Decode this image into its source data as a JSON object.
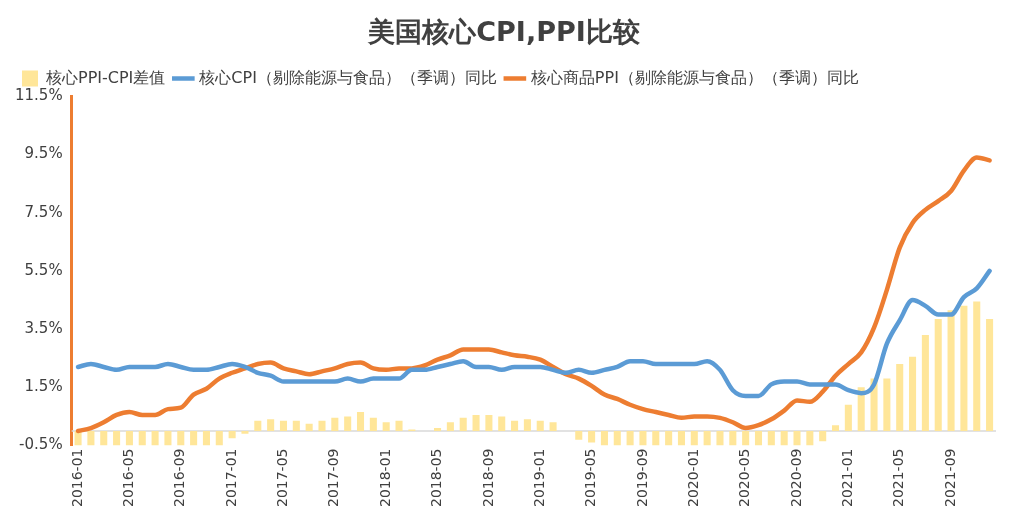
{
  "chart_data": {
    "type": "bar",
    "title": "美国核心CPI,PPI比较",
    "categories": [
      "2016-01",
      null,
      null,
      null,
      "2016-05",
      null,
      null,
      null,
      "2016-09",
      null,
      null,
      null,
      "2017-01",
      null,
      null,
      null,
      "2017-05",
      null,
      null,
      null,
      "2017-09",
      null,
      null,
      null,
      "2018-01",
      null,
      null,
      null,
      "2018-05",
      null,
      null,
      null,
      "2018-09",
      null,
      null,
      null,
      "2019-01",
      null,
      null,
      null,
      "2019-05",
      null,
      null,
      null,
      "2019-09",
      null,
      null,
      null,
      "2020-01",
      null,
      null,
      null,
      "2020-05",
      null,
      null,
      null,
      "2020-09",
      null,
      null,
      null,
      "2021-01",
      null,
      null,
      null,
      "2021-05",
      null,
      null,
      null,
      "2021-09",
      null,
      null,
      null
    ],
    "series": [
      {
        "name": "核心PPI-CPI差值",
        "color": "#ffe699",
        "values": [
          -0.5,
          -0.5,
          -0.5,
          -0.5,
          -0.5,
          -0.5,
          -0.5,
          -0.5,
          -0.5,
          -0.5,
          -0.5,
          -0.5,
          -0.25,
          -0.1,
          0.35,
          0.4,
          0.35,
          0.35,
          0.25,
          0.35,
          0.45,
          0.5,
          0.65,
          0.45,
          0.3,
          0.35,
          0.05,
          0,
          0.1,
          0.3,
          0.45,
          0.55,
          0.55,
          0.5,
          0.35,
          0.4,
          0.35,
          0.3,
          0,
          -0.3,
          -0.4,
          -0.5,
          -0.5,
          -0.5,
          -0.5,
          -0.5,
          -0.5,
          -0.5,
          -0.5,
          -0.5,
          -0.5,
          -0.5,
          -0.5,
          -0.5,
          -0.5,
          -0.5,
          -0.5,
          -0.5,
          -0.35,
          0.2,
          0.9,
          1.5,
          1.8,
          1.8,
          2.3,
          2.55,
          3.3,
          3.85,
          4.15,
          4.3,
          4.45,
          3.85
        ]
      },
      {
        "type": "line",
        "name": "核心CPI（剔除能源与食品）（季调）同比",
        "color": "#5b9bd5",
        "values": [
          2.2,
          2.3,
          2.2,
          2.1,
          2.2,
          2.2,
          2.2,
          2.3,
          2.2,
          2.1,
          2.1,
          2.2,
          2.3,
          2.2,
          2.0,
          1.9,
          1.7,
          1.7,
          1.7,
          1.7,
          1.7,
          1.8,
          1.7,
          1.8,
          1.8,
          1.8,
          2.1,
          2.1,
          2.2,
          2.3,
          2.4,
          2.2,
          2.2,
          2.1,
          2.2,
          2.2,
          2.2,
          2.1,
          2.0,
          2.1,
          2.0,
          2.1,
          2.2,
          2.4,
          2.4,
          2.3,
          2.3,
          2.3,
          2.3,
          2.4,
          2.1,
          1.4,
          1.2,
          1.2,
          1.6,
          1.7,
          1.7,
          1.6,
          1.6,
          1.6,
          1.4,
          1.3,
          1.6,
          3.0,
          3.8,
          4.5,
          4.3,
          4.0,
          4.0,
          4.6,
          4.9,
          5.5
        ]
      },
      {
        "type": "line",
        "name": "核心商品PPI（剔除能源与食品）（季调）同比",
        "color": "#ed7d31",
        "values": [
          0.0,
          0.1,
          0.3,
          0.55,
          0.65,
          0.55,
          0.55,
          0.75,
          0.8,
          1.25,
          1.45,
          1.8,
          2.0,
          2.15,
          2.3,
          2.35,
          2.15,
          2.05,
          1.95,
          2.05,
          2.15,
          2.3,
          2.35,
          2.15,
          2.1,
          2.15,
          2.15,
          2.25,
          2.45,
          2.6,
          2.8,
          2.8,
          2.8,
          2.7,
          2.6,
          2.55,
          2.45,
          2.2,
          1.95,
          1.8,
          1.55,
          1.25,
          1.1,
          0.9,
          0.75,
          0.65,
          0.55,
          0.45,
          0.5,
          0.5,
          0.45,
          0.3,
          0.1,
          0.2,
          0.4,
          0.7,
          1.05,
          1.0,
          1.35,
          1.9,
          2.3,
          2.7,
          3.55,
          4.85,
          6.3,
          7.15,
          7.6,
          7.9,
          8.25,
          8.95,
          9.4,
          9.3
        ]
      }
    ],
    "ylim": [
      -0.5,
      11.5
    ],
    "yticks": [
      {
        "value": -0.5,
        "label": "-0.5%"
      },
      {
        "value": 1.5,
        "label": "1.5%"
      },
      {
        "value": 3.5,
        "label": "3.5%"
      },
      {
        "value": 5.5,
        "label": "5.5%"
      },
      {
        "value": 7.5,
        "label": "7.5%"
      },
      {
        "value": 9.5,
        "label": "9.5%"
      },
      {
        "value": 11.5,
        "label": "11.5%"
      }
    ],
    "grid": false,
    "legend": "top left"
  }
}
